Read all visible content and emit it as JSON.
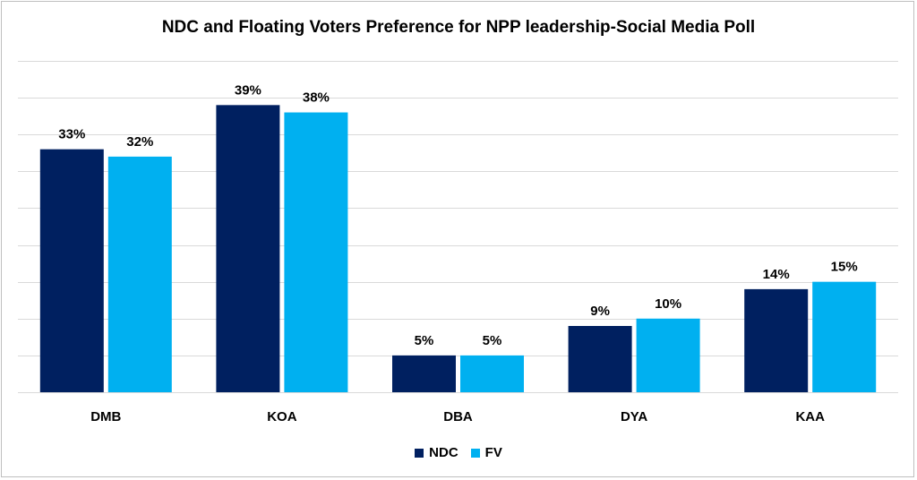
{
  "chart_data": {
    "type": "bar",
    "title": "NDC and Floating Voters Preference for NPP leadership-Social Media Poll",
    "categories": [
      "DMB",
      "KOA",
      "DBA",
      "DYA",
      "KAA"
    ],
    "series": [
      {
        "name": "NDC",
        "color": "#002060",
        "values": [
          33,
          39,
          5,
          9,
          14
        ],
        "labels": [
          "33%",
          "39%",
          "5%",
          "9%",
          "14%"
        ]
      },
      {
        "name": "FV",
        "color": "#00B0F0",
        "values": [
          32,
          38,
          5,
          10,
          15
        ],
        "labels": [
          "32%",
          "38%",
          "5%",
          "10%",
          "15%"
        ]
      }
    ],
    "xlabel": "",
    "ylabel": "",
    "ylim": [
      0,
      45
    ],
    "grid": true,
    "legend": "bottom-center"
  }
}
